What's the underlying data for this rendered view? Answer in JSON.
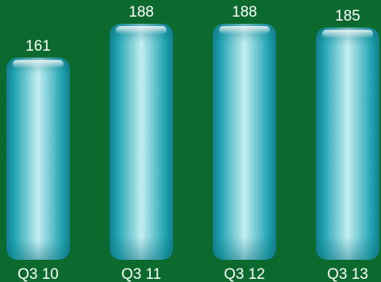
{
  "chart_data": {
    "type": "bar",
    "title": "",
    "xlabel": "",
    "ylabel": "",
    "categories": [
      "Q3 10",
      "Q3 11",
      "Q3 12",
      "Q3 13"
    ],
    "values": [
      161,
      188,
      188,
      185
    ],
    "ylim": [
      0,
      188
    ],
    "grid": false,
    "legend": "none"
  },
  "colors": {
    "background": "#0d6a2e",
    "bar_edge": "#1a9aa8",
    "bar_center": "#bfeef2",
    "label": "#ffffff"
  }
}
